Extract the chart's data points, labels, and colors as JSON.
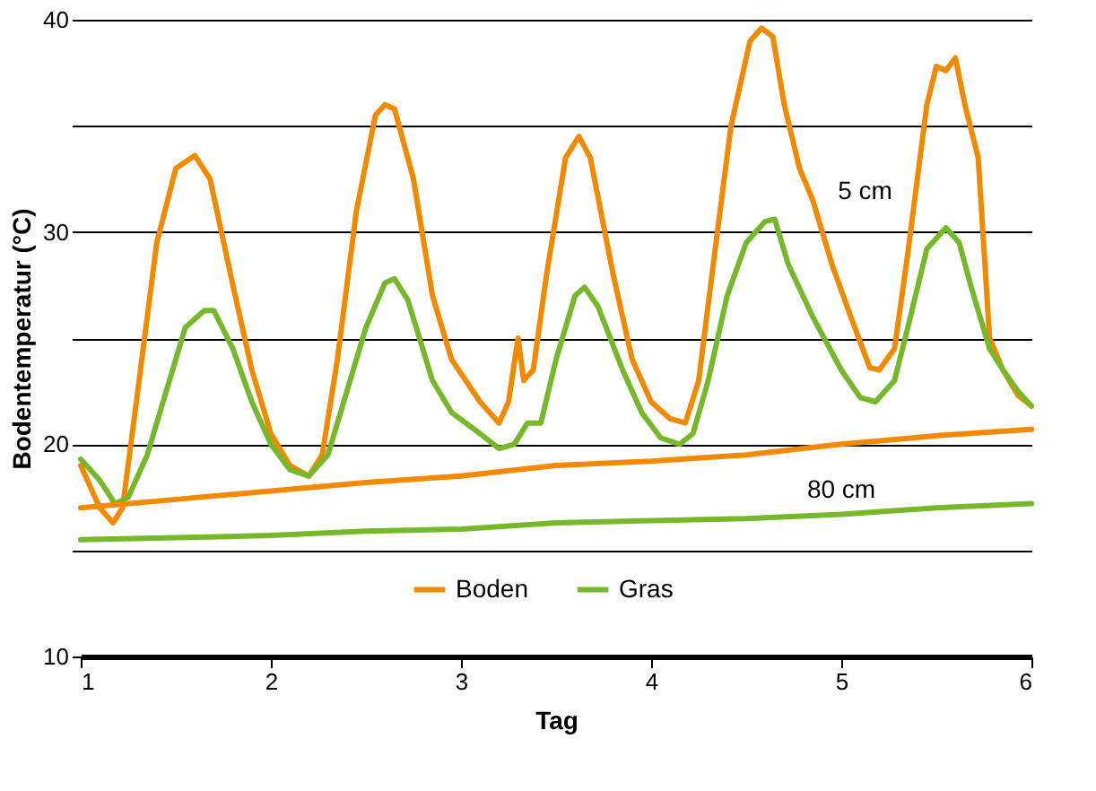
{
  "chart_data": {
    "type": "line",
    "xlabel": "Tag",
    "ylabel": "Bodentemperatur (°C)",
    "xlim": [
      1,
      6
    ],
    "xticks": [
      1,
      2,
      3,
      4,
      5,
      6
    ],
    "ylim": [
      10,
      40
    ],
    "yticks": [
      10,
      {
        "value": 15,
        "label": null
      },
      20,
      {
        "value": 25,
        "label": null
      },
      30,
      {
        "value": 35,
        "label": null
      },
      40
    ],
    "grid": "y",
    "legend": "bottom",
    "line_style": "solid",
    "marker": "none",
    "annotations": [
      "5 cm",
      "80 cm"
    ],
    "series": [
      {
        "name": "Boden",
        "color": "#f18a00",
        "x": [
          1.0,
          1.1,
          1.17,
          1.22,
          1.3,
          1.4,
          1.5,
          1.6,
          1.68,
          1.8,
          1.9,
          2.0,
          2.1,
          2.2,
          2.27,
          2.35,
          2.45,
          2.55,
          2.6,
          2.65,
          2.75,
          2.85,
          2.95,
          3.1,
          3.2,
          3.25,
          3.3,
          3.33,
          3.38,
          3.45,
          3.55,
          3.62,
          3.68,
          3.8,
          3.9,
          4.0,
          4.1,
          4.18,
          4.25,
          4.32,
          4.42,
          4.52,
          4.58,
          4.64,
          4.7,
          4.78,
          4.85,
          4.95,
          5.05,
          5.15,
          5.2,
          5.28,
          5.35,
          5.45,
          5.5,
          5.55,
          5.6,
          5.65,
          5.72,
          5.78,
          5.85,
          5.93,
          6.0
        ],
        "values": [
          19.0,
          17.0,
          16.3,
          17.0,
          22.5,
          29.5,
          33.0,
          33.6,
          32.5,
          27.5,
          23.5,
          20.5,
          19.0,
          18.5,
          19.5,
          24.0,
          31.0,
          35.5,
          36.0,
          35.8,
          32.5,
          27.0,
          24.0,
          22.0,
          21.0,
          22.0,
          25.0,
          23.0,
          23.5,
          28.0,
          33.5,
          34.5,
          33.5,
          28.0,
          24.0,
          22.0,
          21.2,
          21.0,
          23.0,
          28.0,
          35.0,
          39.0,
          39.6,
          39.2,
          36.0,
          33.0,
          31.5,
          28.5,
          26.0,
          23.6,
          23.5,
          24.5,
          29.0,
          36.0,
          37.8,
          37.6,
          38.2,
          36.0,
          33.5,
          25.0,
          23.5,
          22.3,
          21.8
        ]
      },
      {
        "name": "Gras",
        "color": "#76b82a",
        "x": [
          1.0,
          1.1,
          1.18,
          1.25,
          1.35,
          1.45,
          1.55,
          1.65,
          1.7,
          1.8,
          1.9,
          2.0,
          2.1,
          2.2,
          2.3,
          2.4,
          2.5,
          2.6,
          2.65,
          2.72,
          2.85,
          2.95,
          3.1,
          3.2,
          3.28,
          3.35,
          3.42,
          3.5,
          3.6,
          3.65,
          3.72,
          3.85,
          3.95,
          4.05,
          4.15,
          4.22,
          4.3,
          4.4,
          4.5,
          4.6,
          4.65,
          4.72,
          4.85,
          5.0,
          5.1,
          5.18,
          5.28,
          5.35,
          5.45,
          5.55,
          5.62,
          5.68,
          5.78,
          5.85,
          5.93,
          6.0
        ],
        "values": [
          19.3,
          18.3,
          17.2,
          17.5,
          19.5,
          22.5,
          25.5,
          26.3,
          26.3,
          24.5,
          22.0,
          20.0,
          18.8,
          18.5,
          19.5,
          22.5,
          25.5,
          27.6,
          27.8,
          26.8,
          23.0,
          21.5,
          20.5,
          19.8,
          20.0,
          21.0,
          21.0,
          24.0,
          27.0,
          27.4,
          26.5,
          23.5,
          21.5,
          20.3,
          20.0,
          20.5,
          23.0,
          27.0,
          29.5,
          30.5,
          30.6,
          28.5,
          26.0,
          23.5,
          22.2,
          22.0,
          23.0,
          25.5,
          29.2,
          30.2,
          29.5,
          27.5,
          24.5,
          23.5,
          22.5,
          21.8
        ]
      },
      {
        "color": "#f18a00",
        "x": [
          1.0,
          1.5,
          2.0,
          2.5,
          3.0,
          3.5,
          4.0,
          4.5,
          5.0,
          5.5,
          6.0
        ],
        "values": [
          17.0,
          17.4,
          17.8,
          18.2,
          18.5,
          19.0,
          19.2,
          19.5,
          20.0,
          20.4,
          20.7
        ]
      },
      {
        "color": "#76b82a",
        "x": [
          1.0,
          1.5,
          2.0,
          2.5,
          3.0,
          3.5,
          4.0,
          4.5,
          5.0,
          5.5,
          6.0
        ],
        "values": [
          15.5,
          15.6,
          15.7,
          15.9,
          16.0,
          16.3,
          16.4,
          16.5,
          16.7,
          17.0,
          17.2
        ]
      }
    ]
  }
}
